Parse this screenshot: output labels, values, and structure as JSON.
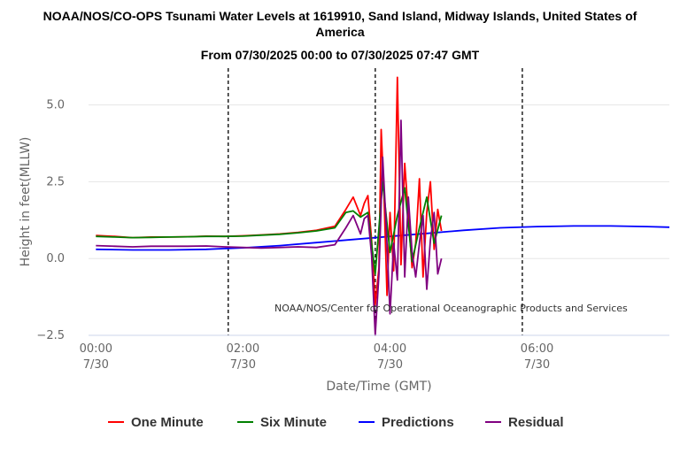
{
  "chart_data": {
    "type": "line",
    "title": "NOAA/NOS/CO-OPS Tsunami Water Levels at 1619910, Sand Island, Midway Islands, United States of America",
    "subtitle": "From 07/30/2025 00:00 to 07/30/2025 07:47 GMT",
    "xlabel": "Date/Time (GMT)",
    "ylabel": "Height in feet(MLLW)",
    "xlim": [
      -0.1,
      7.8
    ],
    "ylim": [
      -2.5,
      6.2
    ],
    "x_unit": "hours since 07/30 00:00 GMT",
    "x_ticks": [
      {
        "value": 0,
        "time": "00:00",
        "date": "7/30"
      },
      {
        "value": 2,
        "time": "02:00",
        "date": "7/30"
      },
      {
        "value": 4,
        "time": "04:00",
        "date": "7/30"
      },
      {
        "value": 6,
        "time": "06:00",
        "date": "7/30"
      }
    ],
    "y_ticks": [
      {
        "value": -2.5,
        "label": "−2.5"
      },
      {
        "value": 0,
        "label": "0.0"
      },
      {
        "value": 2.5,
        "label": "2.5"
      },
      {
        "value": 5,
        "label": "5.0"
      }
    ],
    "grid": true,
    "vertical_markers": [
      1.8,
      3.8,
      5.8
    ],
    "credit": "NOAA/NOS/Center for Operational Oceanographic Products and Services",
    "legend_position": "bottom",
    "series": [
      {
        "name": "One Minute",
        "color": "#ff0000",
        "x": [
          0,
          0.25,
          0.5,
          0.75,
          1,
          1.25,
          1.5,
          1.75,
          2,
          2.25,
          2.5,
          2.75,
          3,
          3.25,
          3.4,
          3.5,
          3.6,
          3.65,
          3.7,
          3.75,
          3.8,
          3.85,
          3.88,
          3.92,
          3.96,
          4.0,
          4.05,
          4.1,
          4.15,
          4.2,
          4.25,
          4.3,
          4.35,
          4.4,
          4.45,
          4.5,
          4.55,
          4.6,
          4.65,
          4.7
        ],
        "y": [
          0.75,
          0.72,
          0.68,
          0.7,
          0.7,
          0.71,
          0.73,
          0.72,
          0.74,
          0.77,
          0.8,
          0.85,
          0.92,
          1.05,
          1.6,
          2.0,
          1.4,
          1.8,
          2.05,
          0.6,
          -1.5,
          -0.3,
          4.2,
          2.0,
          -1.2,
          1.5,
          -0.4,
          5.9,
          -0.2,
          3.1,
          1.4,
          -0.3,
          0.5,
          2.6,
          -0.6,
          1.5,
          2.5,
          0.3,
          1.6,
          0.9
        ]
      },
      {
        "name": "Six Minute",
        "color": "#008000",
        "x": [
          0,
          0.25,
          0.5,
          0.75,
          1,
          1.25,
          1.5,
          1.75,
          2,
          2.25,
          2.5,
          2.75,
          3,
          3.25,
          3.4,
          3.5,
          3.6,
          3.7,
          3.8,
          3.9,
          4.0,
          4.1,
          4.2,
          4.3,
          4.4,
          4.5,
          4.6,
          4.7
        ],
        "y": [
          0.72,
          0.7,
          0.68,
          0.69,
          0.7,
          0.71,
          0.72,
          0.72,
          0.73,
          0.76,
          0.79,
          0.84,
          0.9,
          1.0,
          1.5,
          1.55,
          1.35,
          1.5,
          -0.5,
          2.5,
          0.2,
          1.4,
          2.3,
          -0.1,
          1.0,
          2.0,
          0.5,
          1.4
        ]
      },
      {
        "name": "Predictions",
        "color": "#0000ff",
        "x": [
          0,
          0.5,
          1,
          1.5,
          2,
          2.5,
          3,
          3.5,
          4,
          4.5,
          5,
          5.5,
          6,
          6.5,
          7,
          7.5,
          7.8
        ],
        "y": [
          0.3,
          0.28,
          0.28,
          0.3,
          0.35,
          0.42,
          0.52,
          0.62,
          0.72,
          0.82,
          0.92,
          1.0,
          1.04,
          1.06,
          1.06,
          1.04,
          1.02
        ]
      },
      {
        "name": "Residual",
        "color": "#800080",
        "x": [
          0,
          0.25,
          0.5,
          0.75,
          1,
          1.25,
          1.5,
          1.75,
          2,
          2.25,
          2.5,
          2.75,
          3,
          3.25,
          3.4,
          3.5,
          3.6,
          3.65,
          3.7,
          3.75,
          3.8,
          3.85,
          3.9,
          3.95,
          4.0,
          4.05,
          4.1,
          4.15,
          4.2,
          4.25,
          4.3,
          4.35,
          4.4,
          4.45,
          4.5,
          4.55,
          4.6,
          4.65,
          4.7
        ],
        "y": [
          0.42,
          0.4,
          0.38,
          0.4,
          0.4,
          0.4,
          0.41,
          0.38,
          0.36,
          0.34,
          0.36,
          0.38,
          0.36,
          0.45,
          1.0,
          1.4,
          0.8,
          1.3,
          1.4,
          0.1,
          -2.5,
          -0.5,
          3.3,
          1.0,
          -1.8,
          0.5,
          -0.7,
          4.5,
          -0.6,
          2.0,
          0.2,
          -0.6,
          0.5,
          1.4,
          -1.0,
          0.6,
          1.5,
          -0.5,
          0.0
        ]
      }
    ]
  }
}
